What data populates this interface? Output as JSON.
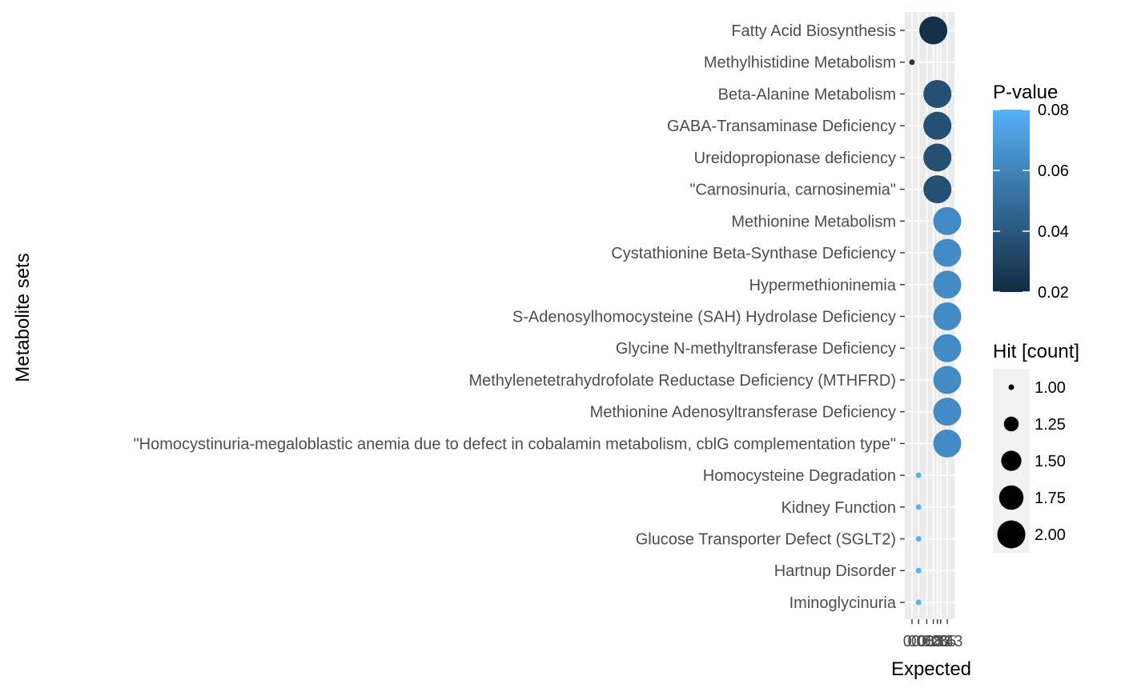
{
  "chart_data": {
    "type": "scatter",
    "xlabel": "Expected",
    "ylabel": "Metabolite sets",
    "x_tick_labels": [
      "0",
      "0.08",
      "0.18",
      "0.26",
      "0.31",
      "0.35",
      "0.43"
    ],
    "x_tick_values": [
      0,
      0.08,
      0.18,
      0.26,
      0.31,
      0.35,
      0.43
    ],
    "xlim": [
      0,
      0.43
    ],
    "grid": true,
    "legend_placement": "right",
    "categories": [
      "Fatty Acid Biosynthesis",
      "Methylhistidine Metabolism",
      "Beta-Alanine Metabolism",
      "GABA-Transaminase Deficiency",
      "Ureidopropionase deficiency",
      "\"Carnosinuria, carnosinemia\"",
      "Methionine Metabolism",
      "Cystathionine Beta-Synthase Deficiency",
      "Hypermethioninemia",
      "S-Adenosylhomocysteine (SAH) Hydrolase Deficiency",
      "Glycine N-methyltransferase Deficiency",
      "Methylenetetrahydrofolate Reductase Deficiency (MTHFRD)",
      "Methionine Adenosyltransferase Deficiency",
      "\"Homocystinuria-megaloblastic anemia due to defect in cobalamin metabolism, cblG complementation type\"",
      "Homocysteine Degradation",
      "Kidney Function",
      "Glucose Transporter Defect (SGLT2)",
      "Hartnup Disorder",
      "Iminoglycinuria"
    ],
    "points": [
      {
        "x": 0.26,
        "hits": 2,
        "pvalue": 0.022
      },
      {
        "x": 0.0,
        "hits": 1,
        "pvalue": 0.025
      },
      {
        "x": 0.31,
        "hits": 2,
        "pvalue": 0.036
      },
      {
        "x": 0.31,
        "hits": 2,
        "pvalue": 0.036
      },
      {
        "x": 0.31,
        "hits": 2,
        "pvalue": 0.036
      },
      {
        "x": 0.31,
        "hits": 2,
        "pvalue": 0.036
      },
      {
        "x": 0.43,
        "hits": 2,
        "pvalue": 0.063
      },
      {
        "x": 0.43,
        "hits": 2,
        "pvalue": 0.063
      },
      {
        "x": 0.43,
        "hits": 2,
        "pvalue": 0.063
      },
      {
        "x": 0.43,
        "hits": 2,
        "pvalue": 0.063
      },
      {
        "x": 0.43,
        "hits": 2,
        "pvalue": 0.063
      },
      {
        "x": 0.43,
        "hits": 2,
        "pvalue": 0.063
      },
      {
        "x": 0.43,
        "hits": 2,
        "pvalue": 0.063
      },
      {
        "x": 0.43,
        "hits": 2,
        "pvalue": 0.063
      },
      {
        "x": 0.08,
        "hits": 1,
        "pvalue": 0.08
      },
      {
        "x": 0.08,
        "hits": 1,
        "pvalue": 0.08
      },
      {
        "x": 0.08,
        "hits": 1,
        "pvalue": 0.08
      },
      {
        "x": 0.08,
        "hits": 1,
        "pvalue": 0.08
      },
      {
        "x": 0.08,
        "hits": 1,
        "pvalue": 0.08
      }
    ],
    "color_legend": {
      "title": "P-value",
      "labels": [
        "0.08",
        "0.06",
        "0.04",
        "0.02"
      ],
      "values": [
        0.08,
        0.06,
        0.04,
        0.02
      ],
      "range": [
        0.02,
        0.08
      ],
      "color_low": "#132b43",
      "color_high": "#56b1f7"
    },
    "size_legend": {
      "title": "Hit [count]",
      "labels": [
        "1.00",
        "1.25",
        "1.50",
        "1.75",
        "2.00"
      ],
      "values": [
        1.0,
        1.25,
        1.5,
        1.75,
        2.0
      ]
    },
    "colors": {
      "panel_background": "#ebebeb",
      "gridline": "#ffffff",
      "size_key_point": "#000000"
    }
  }
}
